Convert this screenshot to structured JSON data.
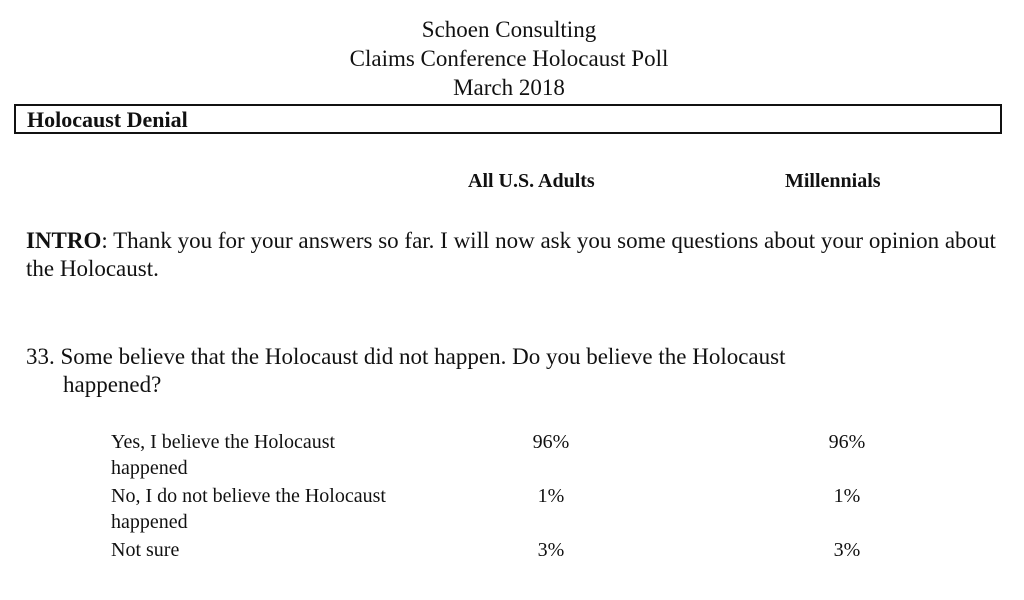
{
  "header": {
    "organization": "Schoen Consulting",
    "poll_title": "Claims Conference Holocaust Poll",
    "date": "March 2018"
  },
  "section": {
    "title": "Holocaust Denial"
  },
  "columns": {
    "adults": "All U.S. Adults",
    "millennials": "Millennials"
  },
  "intro": {
    "label": "INTRO",
    "text": ": Thank you for your answers so far. I will now ask you some questions about your opinion about the Holocaust."
  },
  "question": {
    "number_and_line1": "33. Some believe that the Holocaust did not happen.  Do you believe the Holocaust",
    "line2": "happened?"
  },
  "responses": [
    {
      "label": "Yes, I believe the Holocaust happened",
      "adults": "96%",
      "millennials": "96%"
    },
    {
      "label": "No, I do not believe the Holocaust happened",
      "adults": "1%",
      "millennials": "1%"
    },
    {
      "label": "Not sure",
      "adults": "3%",
      "millennials": "3%"
    }
  ]
}
